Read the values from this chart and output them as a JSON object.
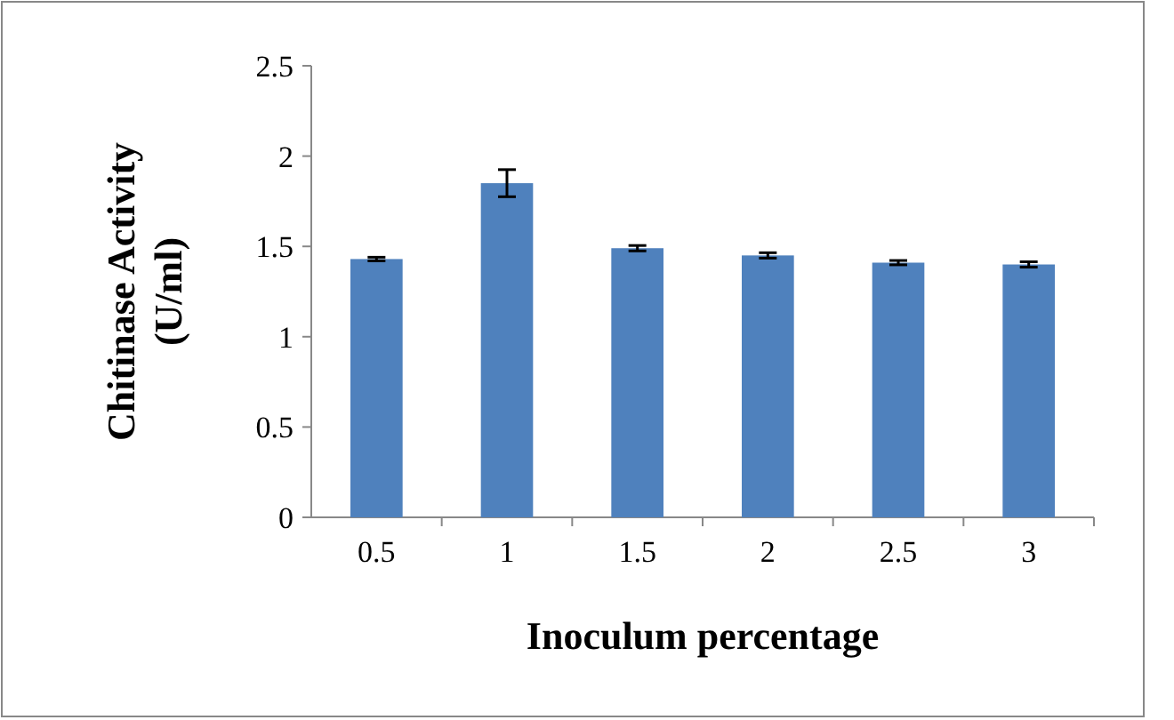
{
  "chart_data": {
    "type": "bar",
    "xlabel": "Inoculum percentage",
    "ylabel": "Chitinase Activity (U/ml)",
    "categories": [
      "0.5",
      "1",
      "1.5",
      "2",
      "2.5",
      "3"
    ],
    "values": [
      1.43,
      1.85,
      1.49,
      1.45,
      1.41,
      1.4
    ],
    "errors": [
      0.01,
      0.075,
      0.015,
      0.015,
      0.012,
      0.015
    ],
    "color": "#4f81bd",
    "ylim": [
      0,
      2.5
    ],
    "yticks": [
      0,
      0.5,
      1,
      1.5,
      2,
      2.5
    ]
  }
}
